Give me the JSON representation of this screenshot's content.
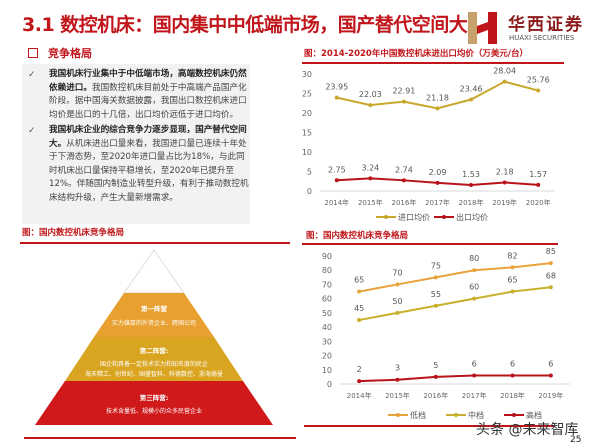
{
  "title": "3.1 数控机床：国内集中中低端市场，国产替代空间大",
  "logo": {
    "cn": "华西证券",
    "en": "HUAXI SECURITIES"
  },
  "section": {
    "label": "竞争格局"
  },
  "bullets": [
    {
      "bold": "我国机床行业集中于中低端市场，高端数控机床仍然依赖进口。",
      "text": "我国数控机床目前处于中高端产品国产化阶段。据中国海关数据披露，我国出口数控机床进口均价是出口的十几倍，出口均价远低于进口均价。"
    },
    {
      "bold": "我国机床企业的综合竞争力逐步显现，国产替代空间大。",
      "text": "从机床进出口量来看，我国进口量已连续十年处于下滑态势，至2020年进口量占比为18%，与此同时机床出口量保持平稳增长，至2020年已提升至12%。伴随国内制造业转型升级，有利于推动数控机床结构升级，产生大量新增需求。"
    }
  ],
  "pyramid": {
    "title": "图：国内数控机床竞争格局",
    "tiers": [
      {
        "name": "第一阵营",
        "desc": "实力雄厚的外资企业、跨国公司",
        "color": "#e8a030"
      },
      {
        "name": "第二阵营:",
        "desc": "国企和具备一定技术实力和知名度的民企",
        "desc2": "海天精工、创世纪、国盛智科、科德数控、浙海德曼",
        "color": "#d9a520"
      },
      {
        "name": "第三阵营:",
        "desc": "技术含量低、规模小的众多民营企业",
        "color": "#d0191b"
      }
    ]
  },
  "chart_data": [
    {
      "type": "line",
      "title": "图：2014-2020年中国数控机床进出口均价（万美元/台）",
      "categories": [
        "2014年",
        "2015年",
        "2016年",
        "2017年",
        "2018年",
        "2019年",
        "2020年"
      ],
      "ylim": [
        0,
        30
      ],
      "yticks": [
        0,
        5,
        10,
        15,
        20,
        25,
        30
      ],
      "grid": false,
      "legend": "bottom",
      "series": [
        {
          "name": "进口均价",
          "color": "#c8a82c",
          "values": [
            23.95,
            22.03,
            22.91,
            21.18,
            23.46,
            28.04,
            25.76
          ]
        },
        {
          "name": "出口均价",
          "color": "#b8131b",
          "values": [
            2.75,
            3.24,
            2.74,
            2.09,
            1.53,
            2.18,
            1.57
          ]
        }
      ]
    },
    {
      "type": "line",
      "title": "图：国内数控机床竞争格局",
      "categories": [
        "2014年",
        "2015年",
        "2016年",
        "2017年",
        "2018年",
        "2019年"
      ],
      "ylim": [
        0,
        90
      ],
      "yticks": [
        0,
        10,
        20,
        30,
        40,
        50,
        60,
        70,
        80,
        90
      ],
      "grid": false,
      "legend": "bottom",
      "series": [
        {
          "name": "低档",
          "color": "#e8a33a",
          "values": [
            65,
            70,
            75,
            80,
            82,
            85
          ]
        },
        {
          "name": "中档",
          "color": "#c9b02c",
          "values": [
            45,
            50,
            55,
            60,
            65,
            68
          ]
        },
        {
          "name": "高档",
          "color": "#b8131b",
          "values": [
            2,
            3,
            5,
            6,
            6,
            6
          ]
        }
      ]
    }
  ],
  "footer": {
    "watermark": "头条 @未来智库",
    "page": "25"
  }
}
